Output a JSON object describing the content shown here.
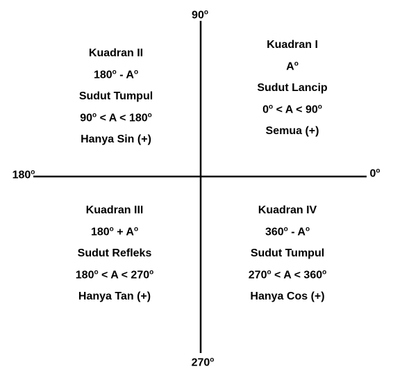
{
  "axes": {
    "top": [
      "90",
      "o"
    ],
    "left": [
      "180",
      "o"
    ],
    "right": [
      "0",
      "o"
    ],
    "bottom": [
      "270",
      "o"
    ]
  },
  "quadrants": [
    {
      "lines": [
        [
          "Kuadran II"
        ],
        [
          "180",
          "o",
          " - A",
          "o"
        ],
        [
          "Sudut Tumpul"
        ],
        [
          "90",
          "o",
          " < A < 180",
          "o"
        ],
        [
          "Hanya Sin (+)"
        ]
      ]
    },
    {
      "lines": [
        [
          "Kuadran I"
        ],
        [
          "A",
          "o"
        ],
        [
          "Sudut Lancip"
        ],
        [
          "0",
          "o",
          " < A < 90",
          "o"
        ],
        [
          "Semua (+)"
        ]
      ]
    },
    {
      "lines": [
        [
          "Kuadran III"
        ],
        [
          "180",
          "o",
          " + A",
          "o"
        ],
        [
          "Sudut Refleks"
        ],
        [
          "180",
          "o",
          " < A < 270",
          "o"
        ],
        [
          "Hanya Tan (+)"
        ]
      ]
    },
    {
      "lines": [
        [
          "Kuadran IV"
        ],
        [
          "360",
          "o",
          " - A",
          "o"
        ],
        [
          "Sudut Tumpul"
        ],
        [
          "270",
          "o",
          " < A < 360",
          "o"
        ],
        [
          "Hanya Cos (+)"
        ]
      ]
    }
  ]
}
